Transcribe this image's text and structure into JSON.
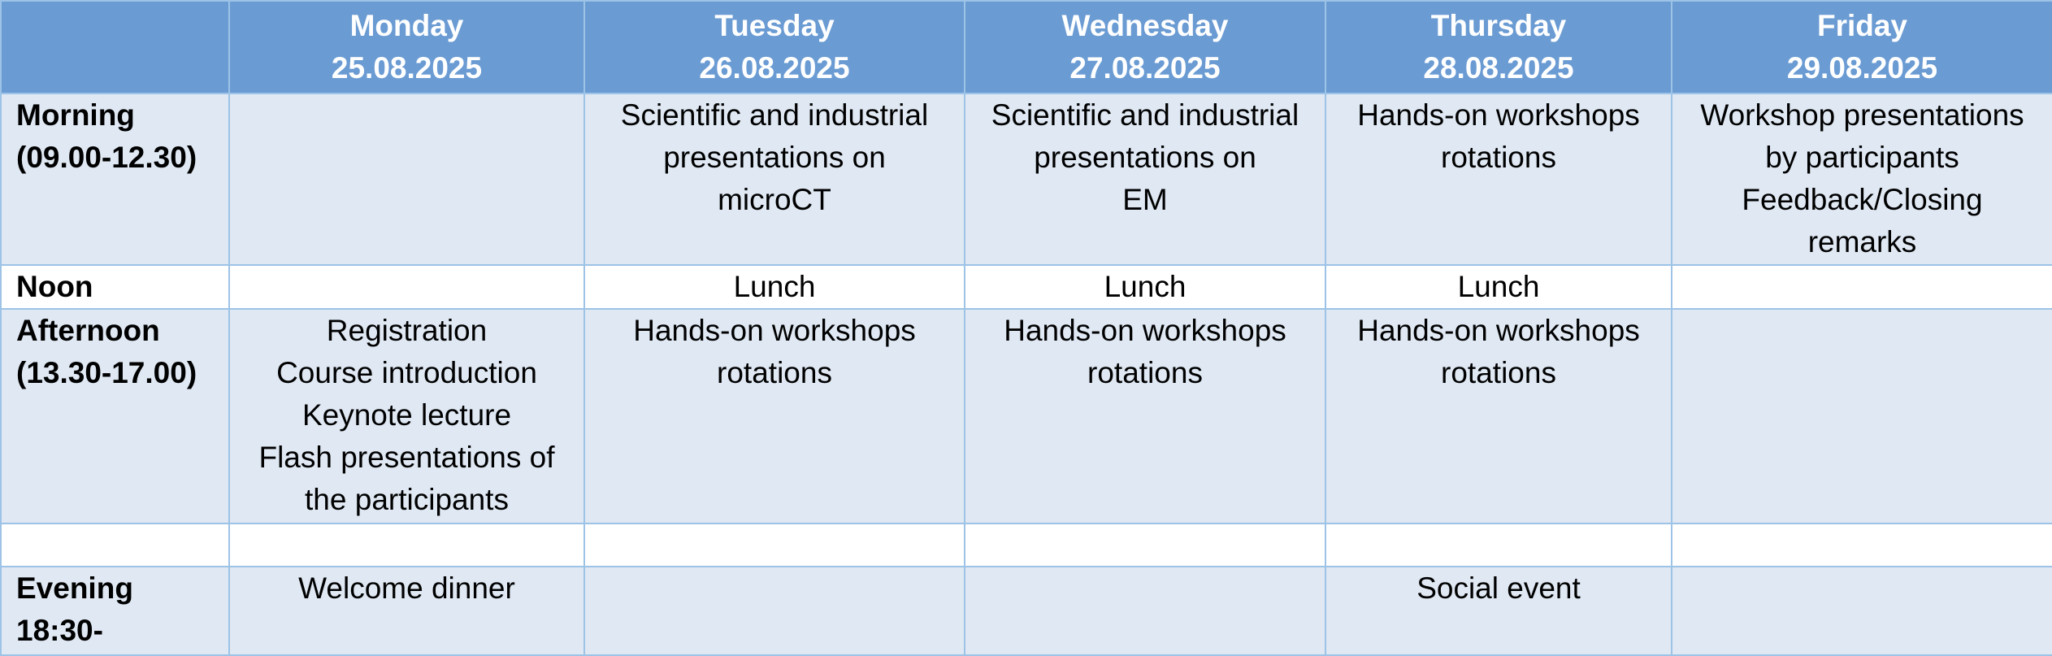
{
  "header": {
    "days": [
      {
        "name": "Monday",
        "date": "25.08.2025"
      },
      {
        "name": "Tuesday",
        "date": "26.08.2025"
      },
      {
        "name": "Wednesday",
        "date": "27.08.2025"
      },
      {
        "name": "Thursday",
        "date": "28.08.2025"
      },
      {
        "name": "Friday",
        "date": "29.08.2025"
      }
    ]
  },
  "rows": {
    "morning": {
      "label": [
        "Morning",
        "(09.00-12.30)"
      ],
      "cells": [
        [],
        [
          "Scientific and industrial",
          "presentations on",
          "microCT"
        ],
        [
          "Scientific and industrial",
          "presentations on",
          "EM"
        ],
        [
          "Hands-on workshops",
          "rotations"
        ],
        [
          "Workshop presentations",
          "by participants",
          "Feedback/Closing",
          "remarks"
        ]
      ]
    },
    "noon": {
      "label": [
        "Noon"
      ],
      "cells": [
        [],
        [
          "Lunch"
        ],
        [
          "Lunch"
        ],
        [
          "Lunch"
        ],
        []
      ]
    },
    "afternoon": {
      "label": [
        "Afternoon",
        "(13.30-17.00)"
      ],
      "cells": [
        [
          "Registration",
          "Course introduction",
          "Keynote lecture",
          "Flash presentations of",
          "the participants"
        ],
        [
          "Hands-on workshops",
          "rotations"
        ],
        [
          "Hands-on workshops",
          "rotations"
        ],
        [
          "Hands-on workshops",
          "rotations"
        ],
        []
      ]
    },
    "evening": {
      "label": [
        "Evening",
        "18:30-"
      ],
      "cells": [
        [
          "Welcome dinner"
        ],
        [],
        [],
        [
          "Social event"
        ],
        []
      ]
    }
  },
  "colors": {
    "header_bg": "#6a9bd3",
    "header_text": "#ffffff",
    "shaded_row_bg": "#dfe8f3",
    "grid_line": "#9dc3e6"
  }
}
